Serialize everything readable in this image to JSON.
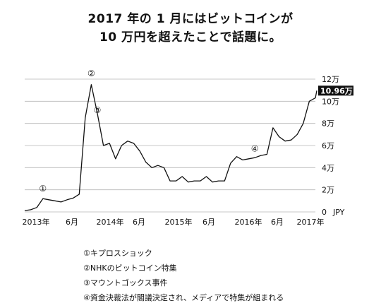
{
  "title_lines": [
    "2017 年の 1 月にはビットコインが",
    "10 万円を超えたことで話題に。"
  ],
  "chart_data": {
    "type": "line",
    "unit": "JPY",
    "ylim": [
      0,
      120000
    ],
    "yticks": [
      {
        "value": 0,
        "label": "0"
      },
      {
        "value": 20000,
        "label": "2万"
      },
      {
        "value": 40000,
        "label": "4万"
      },
      {
        "value": 60000,
        "label": "6万"
      },
      {
        "value": 80000,
        "label": "8万"
      },
      {
        "value": 100000,
        "label": "10万"
      },
      {
        "value": 120000,
        "label": "12万"
      }
    ],
    "xticks": [
      "2013年",
      "6月",
      "2014年",
      "6月",
      "2015年",
      "6月",
      "2016年",
      "6月",
      "2017年"
    ],
    "x": [
      "2013-01",
      "2013-02",
      "2013-03",
      "2013-04",
      "2013-05",
      "2013-06",
      "2013-07",
      "2013-08",
      "2013-09",
      "2013-10",
      "2013-11",
      "2013-12",
      "2014-01",
      "2014-02",
      "2014-03",
      "2014-04",
      "2014-05",
      "2014-06",
      "2014-07",
      "2014-08",
      "2014-09",
      "2014-10",
      "2014-11",
      "2014-12",
      "2015-01",
      "2015-02",
      "2015-03",
      "2015-04",
      "2015-05",
      "2015-06",
      "2015-07",
      "2015-08",
      "2015-09",
      "2015-10",
      "2015-11",
      "2015-12",
      "2016-01",
      "2016-02",
      "2016-03",
      "2016-04",
      "2016-05",
      "2016-06",
      "2016-07",
      "2016-08",
      "2016-09",
      "2016-10",
      "2016-11",
      "2016-12",
      "2017-01"
    ],
    "y": [
      1200,
      2000,
      4000,
      12000,
      11000,
      10000,
      9000,
      11000,
      12500,
      16000,
      85000,
      115000,
      89000,
      60000,
      62000,
      48000,
      60000,
      64000,
      62000,
      55000,
      45000,
      40000,
      42000,
      40000,
      28000,
      28000,
      32000,
      27000,
      28000,
      28000,
      32000,
      27000,
      28000,
      28000,
      44000,
      50000,
      47000,
      48000,
      49000,
      51000,
      52000,
      76000,
      68000,
      64000,
      65000,
      70000,
      80000,
      100000,
      103000
    ],
    "latest": {
      "value": 109600,
      "label": "10.96万"
    },
    "annotations": [
      {
        "label": "①",
        "x": "2013-04",
        "y": 21000
      },
      {
        "label": "②",
        "x": "2013-12",
        "y": 125000
      },
      {
        "label": "③",
        "x": "2014-01",
        "y": 92000
      },
      {
        "label": "④",
        "x": "2016-03",
        "y": 57000
      }
    ],
    "grid": true
  },
  "notes": [
    "①キプロスショック",
    "②NHKのビットコイン特集",
    "③マウントゴックス事件",
    "④資金決裁法が閣議決定され、メディアで特集が組まれる"
  ]
}
